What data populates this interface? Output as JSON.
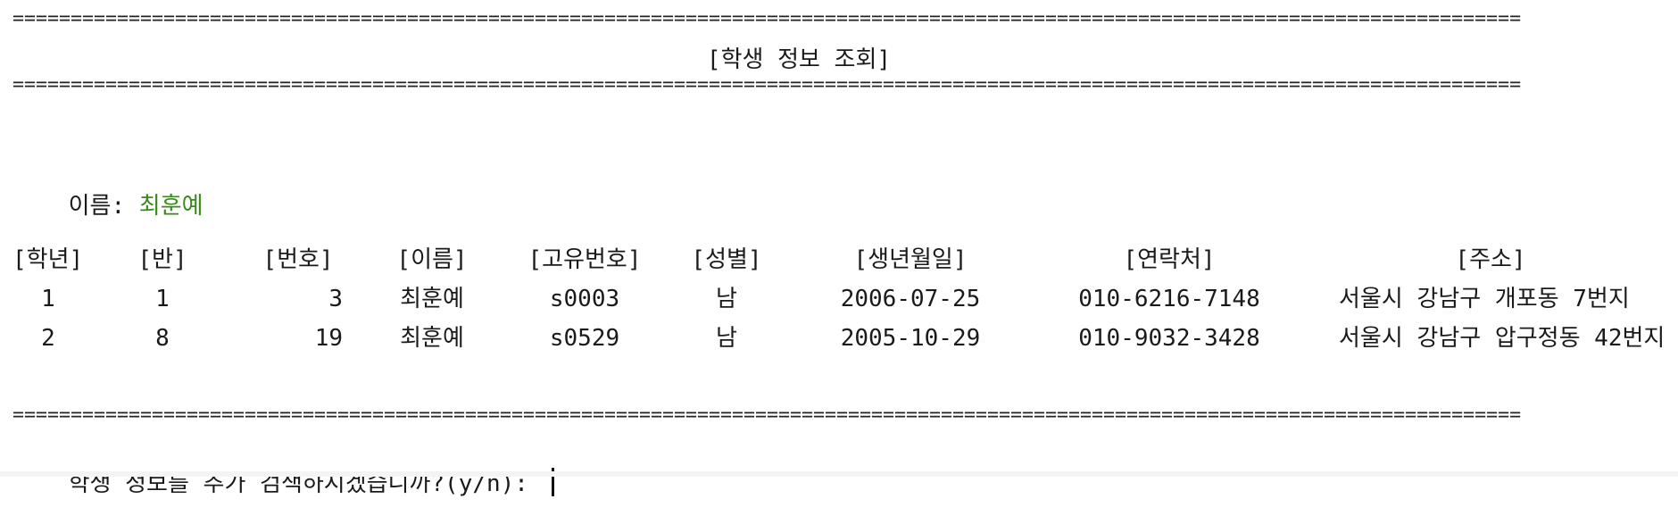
{
  "separator": "==================================================================================================================================",
  "title": "[학생 정보 조회]",
  "search": {
    "label": "이름: ",
    "value": "최훈예"
  },
  "table": {
    "headers": [
      "[학년]",
      "[반]",
      "[번호]",
      "[이름]",
      "[고유번호]",
      "[성별]",
      "[생년월일]",
      "[연락처]",
      "[주소]"
    ],
    "rows": [
      [
        "1",
        "1",
        "3",
        "최훈예",
        "s0003",
        "남",
        "2006-07-25",
        "010-6216-7148",
        "서울시 강남구 개포동 7번지"
      ],
      [
        "2",
        "8",
        "19",
        "최훈예",
        "s0529",
        "남",
        "2005-10-29",
        "010-9032-3428",
        "서울시 강남구 압구정동 42번지"
      ]
    ]
  },
  "prompt": "학생 정보를 추가 검색하시겠습니까?(y/n): ",
  "colors": {
    "accent_value": "#3a8a1c"
  }
}
